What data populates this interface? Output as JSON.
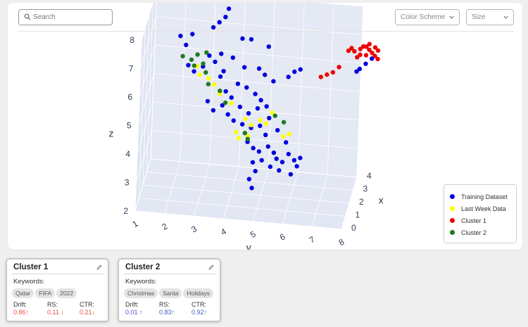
{
  "search": {
    "placeholder": "Search"
  },
  "controls": {
    "color_scheme": "Color Scheme",
    "size": "Size"
  },
  "chart_data": {
    "type": "scatter",
    "axes": {
      "x": {
        "label": "x",
        "ticks": [
          "0",
          "1",
          "2",
          "3",
          "4"
        ]
      },
      "y": {
        "label": "v",
        "ticks": [
          "1",
          "2",
          "3",
          "4",
          "5",
          "6",
          "7",
          "8"
        ]
      },
      "z": {
        "label": "z",
        "ticks": [
          "2",
          "3",
          "4",
          "5",
          "6",
          "7",
          "8"
        ]
      }
    },
    "legend": {
      "position": "bottom-right"
    },
    "series": [
      {
        "name": "Training Dataset",
        "color": "#0000dd",
        "points": [
          [
            1,
            2.2,
            7.8
          ],
          [
            1,
            2.6,
            7.9
          ],
          [
            1,
            2.4,
            7.5
          ],
          [
            1,
            3.8,
            8.9
          ],
          [
            1,
            3.7,
            8.6
          ],
          [
            1,
            3.5,
            8.4
          ],
          [
            1,
            3.3,
            8.2
          ],
          [
            1,
            3.6,
            7.3
          ],
          [
            1,
            4.3,
            7.9
          ],
          [
            1,
            4.6,
            7.9
          ],
          [
            1,
            5.2,
            7.7
          ],
          [
            1,
            4.0,
            7.2
          ],
          [
            1,
            4.4,
            6.9
          ],
          [
            1,
            4.9,
            6.9
          ],
          [
            1,
            5.1,
            6.7
          ],
          [
            1,
            5.4,
            6.5
          ],
          [
            1,
            3.2,
            7.2
          ],
          [
            1,
            3.4,
            7.0
          ],
          [
            1,
            3.7,
            6.7
          ],
          [
            1,
            3.6,
            6.5
          ],
          [
            1,
            4.2,
            6.3
          ],
          [
            1,
            4.5,
            6.2
          ],
          [
            1,
            3.8,
            6.0
          ],
          [
            1,
            4.0,
            5.8
          ],
          [
            1,
            4.8,
            6.0
          ],
          [
            1,
            5.0,
            5.8
          ],
          [
            1,
            5.2,
            5.6
          ],
          [
            1,
            4.3,
            5.5
          ],
          [
            1,
            4.6,
            5.3
          ],
          [
            1,
            3.7,
            5.5
          ],
          [
            1,
            3.9,
            5.2
          ],
          [
            1,
            4.1,
            5.0
          ],
          [
            1,
            3.2,
            5.6
          ],
          [
            1,
            3.4,
            5.3
          ],
          [
            1,
            4.4,
            4.9
          ],
          [
            1,
            4.7,
            4.8
          ],
          [
            1,
            5.0,
            4.9
          ],
          [
            1,
            5.2,
            4.6
          ],
          [
            1,
            4.6,
            4.3
          ],
          [
            1,
            4.8,
            4.1
          ],
          [
            1,
            5.0,
            4.0
          ],
          [
            1,
            5.3,
            4.2
          ],
          [
            1,
            5.5,
            4.0
          ],
          [
            1,
            5.6,
            3.8
          ],
          [
            1,
            5.8,
            3.7
          ],
          [
            1,
            5.7,
            3.4
          ],
          [
            1,
            5.4,
            3.5
          ],
          [
            1,
            5.1,
            3.7
          ],
          [
            1,
            4.8,
            3.6
          ],
          [
            1,
            4.9,
            3.3
          ],
          [
            1,
            4.7,
            3.0
          ],
          [
            1,
            4.8,
            2.7
          ],
          [
            1,
            5.6,
            4.8
          ],
          [
            1,
            5.9,
            4.4
          ],
          [
            1,
            6.0,
            4.0
          ],
          [
            1,
            6.2,
            3.8
          ],
          [
            1,
            6.3,
            3.6
          ],
          [
            1,
            6.1,
            3.3
          ],
          [
            1,
            6.4,
            3.9
          ],
          [
            1,
            5.3,
            5.2
          ],
          [
            1,
            4.9,
            5.5
          ],
          [
            1,
            5.9,
            6.7
          ],
          [
            1,
            6.1,
            6.9
          ],
          [
            1,
            6.3,
            7.0
          ],
          [
            1,
            8.3,
            7.2
          ],
          [
            1,
            8.5,
            7.4
          ],
          [
            1,
            8.7,
            7.6
          ],
          [
            1,
            8.2,
            7.1
          ],
          [
            1,
            2.5,
            6.8
          ],
          [
            1,
            2.7,
            6.6
          ],
          [
            1,
            3.0,
            6.8
          ]
        ]
      },
      {
        "name": "Last Week Data",
        "color": "#ffff00",
        "points": [
          [
            1,
            2.8,
            6.8
          ],
          [
            1,
            2.9,
            6.5
          ],
          [
            1,
            3.2,
            6.4
          ],
          [
            1,
            3.4,
            6.2
          ],
          [
            1,
            3.6,
            5.9
          ],
          [
            1,
            4.0,
            5.6
          ],
          [
            1,
            4.5,
            5.1
          ],
          [
            1,
            4.7,
            4.9
          ],
          [
            1,
            4.2,
            4.6
          ],
          [
            1,
            4.3,
            4.4
          ],
          [
            1,
            4.6,
            4.5
          ],
          [
            1,
            5.0,
            5.1
          ],
          [
            1,
            5.4,
            5.4
          ],
          [
            1,
            5.2,
            5.0
          ],
          [
            1,
            5.8,
            4.6
          ],
          [
            1,
            6.0,
            4.7
          ]
        ]
      },
      {
        "name": "Cluster 1",
        "color": "#ee0000",
        "points": [
          [
            1,
            7.9,
            7.8
          ],
          [
            1,
            8.1,
            7.8
          ],
          [
            1,
            8.3,
            7.9
          ],
          [
            1,
            8.4,
            8.0
          ],
          [
            1,
            8.6,
            8.1
          ],
          [
            1,
            8.8,
            8.0
          ],
          [
            1,
            8.9,
            7.9
          ],
          [
            1,
            8.5,
            7.7
          ],
          [
            1,
            8.7,
            7.8
          ],
          [
            1,
            8.2,
            7.6
          ],
          [
            1,
            8.0,
            7.9
          ],
          [
            1,
            8.6,
            7.9
          ],
          [
            1,
            8.8,
            7.7
          ],
          [
            1,
            8.3,
            7.7
          ],
          [
            1,
            8.5,
            8.0
          ],
          [
            1,
            8.9,
            7.6
          ],
          [
            1,
            7.6,
            7.2
          ],
          [
            1,
            7.4,
            7.0
          ],
          [
            1,
            7.2,
            6.9
          ],
          [
            1,
            7.0,
            6.8
          ]
        ]
      },
      {
        "name": "Cluster 2",
        "color": "#1f7a1f",
        "points": [
          [
            1,
            2.3,
            7.1
          ],
          [
            1,
            2.6,
            7.0
          ],
          [
            1,
            2.7,
            6.8
          ],
          [
            1,
            2.8,
            7.2
          ],
          [
            1,
            3.0,
            6.9
          ],
          [
            1,
            3.1,
            6.6
          ],
          [
            1,
            3.2,
            6.2
          ],
          [
            1,
            3.6,
            6.0
          ],
          [
            1,
            3.8,
            5.6
          ],
          [
            1,
            4.5,
            4.6
          ],
          [
            1,
            4.6,
            4.4
          ],
          [
            1,
            5.5,
            5.3
          ],
          [
            1,
            5.8,
            5.1
          ],
          [
            1,
            3.1,
            7.3
          ]
        ]
      }
    ]
  },
  "clusters": [
    {
      "title": "Cluster 1",
      "keywords_label": "Keywords:",
      "keywords": [
        "Qatar",
        "FIFA",
        "2022"
      ],
      "metrics": [
        {
          "label": "Drift:",
          "value": "0.86",
          "arrow": "↑",
          "color": "#e8543c"
        },
        {
          "label": "RS:",
          "value": "0.11",
          "arrow": "↓",
          "color": "#e8543c"
        },
        {
          "label": "CTR:",
          "value": "0.21",
          "arrow": "↓",
          "color": "#e8543c"
        }
      ]
    },
    {
      "title": "Cluster 2",
      "keywords_label": "Keywords:",
      "keywords": [
        "Christmas",
        "Santa",
        "Holidays"
      ],
      "metrics": [
        {
          "label": "Drift:",
          "value": "0.01",
          "arrow": "↑",
          "color": "#4a56c8"
        },
        {
          "label": "RS:",
          "value": "0.83",
          "arrow": "↑",
          "color": "#4a56c8"
        },
        {
          "label": "CTR:",
          "value": "0.92",
          "arrow": "↑",
          "color": "#4a56c8"
        }
      ]
    }
  ]
}
